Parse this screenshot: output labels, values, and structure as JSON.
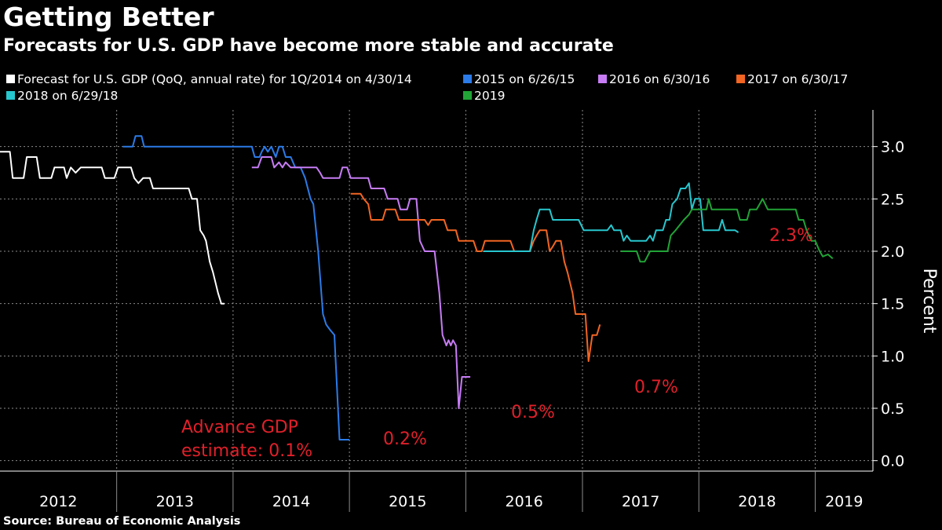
{
  "header": {
    "title": "Getting Better",
    "subtitle": "Forecasts for U.S. GDP have become more stable and accurate"
  },
  "footer": {
    "source": "Source: Bureau of Economic Analysis"
  },
  "chart_data": {
    "type": "line",
    "title": "Getting Better",
    "subtitle": "Forecasts for U.S. GDP have become more stable and accurate",
    "ylabel": "Percent",
    "ylim": [
      -0.1,
      3.35
    ],
    "yticks": [
      0.0,
      0.5,
      1.0,
      1.5,
      2.0,
      2.5,
      3.0
    ],
    "ytick_labels": [
      "0.0",
      "0.5",
      "1.0",
      "1.5",
      "2.0",
      "2.5",
      "3.0"
    ],
    "xlim": [
      "2012-01-01",
      "2019-07-01"
    ],
    "year_labels": [
      "2012",
      "2013",
      "2014",
      "2015",
      "2016",
      "2017",
      "2018",
      "2019"
    ],
    "grid": true,
    "y_axis_position": "right",
    "legend_position": "top",
    "series": [
      {
        "name": "Forecast for U.S. GDP (QoQ, annual rate) for 1Q/2014 on 4/30/14",
        "color": "#ffffff",
        "points": [
          [
            "2012-01-01",
            2.95
          ],
          [
            "2012-02-01",
            2.95
          ],
          [
            "2012-02-10",
            2.7
          ],
          [
            "2012-03-15",
            2.7
          ],
          [
            "2012-03-25",
            2.9
          ],
          [
            "2012-04-25",
            2.9
          ],
          [
            "2012-05-05",
            2.7
          ],
          [
            "2012-06-10",
            2.7
          ],
          [
            "2012-06-20",
            2.8
          ],
          [
            "2012-07-20",
            2.8
          ],
          [
            "2012-07-28",
            2.7
          ],
          [
            "2012-08-10",
            2.8
          ],
          [
            "2012-08-25",
            2.75
          ],
          [
            "2012-09-10",
            2.8
          ],
          [
            "2012-11-15",
            2.8
          ],
          [
            "2012-11-25",
            2.7
          ],
          [
            "2012-12-25",
            2.7
          ],
          [
            "2013-01-05",
            2.8
          ],
          [
            "2013-02-15",
            2.8
          ],
          [
            "2013-02-25",
            2.7
          ],
          [
            "2013-03-10",
            2.65
          ],
          [
            "2013-03-25",
            2.7
          ],
          [
            "2013-04-15",
            2.7
          ],
          [
            "2013-04-25",
            2.6
          ],
          [
            "2013-08-15",
            2.6
          ],
          [
            "2013-08-25",
            2.5
          ],
          [
            "2013-09-10",
            2.5
          ],
          [
            "2013-09-20",
            2.2
          ],
          [
            "2013-10-01",
            2.15
          ],
          [
            "2013-10-08",
            2.1
          ],
          [
            "2013-10-20",
            1.9
          ],
          [
            "2013-10-30",
            1.8
          ],
          [
            "2013-11-15",
            1.6
          ],
          [
            "2013-11-25",
            1.5
          ],
          [
            "2013-12-05",
            1.5
          ]
        ]
      },
      {
        "name": "2015 on 6/26/15",
        "color": "#2b7be8",
        "points": [
          [
            "2013-01-20",
            3.0
          ],
          [
            "2013-02-20",
            3.0
          ],
          [
            "2013-03-01",
            3.1
          ],
          [
            "2013-03-20",
            3.1
          ],
          [
            "2013-03-28",
            3.0
          ],
          [
            "2014-03-01",
            3.0
          ],
          [
            "2014-03-10",
            2.9
          ],
          [
            "2014-03-25",
            2.9
          ],
          [
            "2014-04-01",
            2.95
          ],
          [
            "2014-04-10",
            3.0
          ],
          [
            "2014-04-20",
            2.95
          ],
          [
            "2014-05-01",
            3.0
          ],
          [
            "2014-05-15",
            2.9
          ],
          [
            "2014-05-25",
            3.0
          ],
          [
            "2014-06-05",
            3.0
          ],
          [
            "2014-06-15",
            2.9
          ],
          [
            "2014-07-01",
            2.9
          ],
          [
            "2014-07-15",
            2.8
          ],
          [
            "2014-08-01",
            2.8
          ],
          [
            "2014-08-15",
            2.7
          ],
          [
            "2014-09-01",
            2.5
          ],
          [
            "2014-09-10",
            2.45
          ],
          [
            "2014-09-25",
            2.0
          ],
          [
            "2014-10-10",
            1.4
          ],
          [
            "2014-10-20",
            1.3
          ],
          [
            "2014-11-01",
            1.25
          ],
          [
            "2014-11-15",
            1.2
          ],
          [
            "2014-12-01",
            0.2
          ],
          [
            "2015-01-01",
            0.2
          ]
        ]
      },
      {
        "name": "2016 on 6/30/16",
        "color": "#c77cf5",
        "points": [
          [
            "2014-03-01",
            2.8
          ],
          [
            "2014-03-20",
            2.8
          ],
          [
            "2014-04-01",
            2.9
          ],
          [
            "2014-05-01",
            2.9
          ],
          [
            "2014-05-10",
            2.8
          ],
          [
            "2014-05-25",
            2.85
          ],
          [
            "2014-06-05",
            2.8
          ],
          [
            "2014-06-15",
            2.85
          ],
          [
            "2014-07-01",
            2.8
          ],
          [
            "2014-09-20",
            2.8
          ],
          [
            "2014-10-01",
            2.75
          ],
          [
            "2014-10-10",
            2.7
          ],
          [
            "2014-12-01",
            2.7
          ],
          [
            "2014-12-10",
            2.8
          ],
          [
            "2014-12-25",
            2.8
          ],
          [
            "2015-01-05",
            2.7
          ],
          [
            "2015-03-01",
            2.7
          ],
          [
            "2015-03-10",
            2.6
          ],
          [
            "2015-04-20",
            2.6
          ],
          [
            "2015-05-01",
            2.5
          ],
          [
            "2015-06-01",
            2.5
          ],
          [
            "2015-06-10",
            2.4
          ],
          [
            "2015-07-01",
            2.4
          ],
          [
            "2015-07-10",
            2.5
          ],
          [
            "2015-07-30",
            2.5
          ],
          [
            "2015-08-10",
            2.1
          ],
          [
            "2015-08-25",
            2.0
          ],
          [
            "2015-09-25",
            2.0
          ],
          [
            "2015-10-10",
            1.6
          ],
          [
            "2015-10-20",
            1.2
          ],
          [
            "2015-11-01",
            1.1
          ],
          [
            "2015-11-08",
            1.15
          ],
          [
            "2015-11-15",
            1.1
          ],
          [
            "2015-11-22",
            1.15
          ],
          [
            "2015-12-01",
            1.1
          ],
          [
            "2015-12-10",
            0.5
          ],
          [
            "2015-12-20",
            0.8
          ],
          [
            "2016-01-15",
            0.8
          ]
        ]
      },
      {
        "name": "2017 on 6/30/17",
        "color": "#f26522",
        "points": [
          [
            "2015-01-05",
            2.55
          ],
          [
            "2015-02-05",
            2.55
          ],
          [
            "2015-02-15",
            2.5
          ],
          [
            "2015-03-01",
            2.45
          ],
          [
            "2015-03-10",
            2.3
          ],
          [
            "2015-04-15",
            2.3
          ],
          [
            "2015-04-25",
            2.4
          ],
          [
            "2015-05-25",
            2.4
          ],
          [
            "2015-06-05",
            2.3
          ],
          [
            "2015-08-25",
            2.3
          ],
          [
            "2015-09-05",
            2.25
          ],
          [
            "2015-09-15",
            2.3
          ],
          [
            "2015-10-25",
            2.3
          ],
          [
            "2015-11-05",
            2.2
          ],
          [
            "2015-12-01",
            2.2
          ],
          [
            "2015-12-10",
            2.1
          ],
          [
            "2016-01-25",
            2.1
          ],
          [
            "2016-02-05",
            2.0
          ],
          [
            "2016-02-20",
            2.0
          ],
          [
            "2016-03-01",
            2.1
          ],
          [
            "2016-05-20",
            2.1
          ],
          [
            "2016-06-01",
            2.0
          ],
          [
            "2016-07-20",
            2.0
          ],
          [
            "2016-08-01",
            2.1
          ],
          [
            "2016-08-10",
            2.15
          ],
          [
            "2016-08-20",
            2.2
          ],
          [
            "2016-09-10",
            2.2
          ],
          [
            "2016-09-20",
            2.0
          ],
          [
            "2016-10-01",
            2.05
          ],
          [
            "2016-10-10",
            2.1
          ],
          [
            "2016-10-25",
            2.1
          ],
          [
            "2016-11-05",
            1.9
          ],
          [
            "2016-11-15",
            1.8
          ],
          [
            "2016-12-01",
            1.6
          ],
          [
            "2016-12-10",
            1.4
          ],
          [
            "2016-12-20",
            1.4
          ],
          [
            "2017-01-10",
            1.4
          ],
          [
            "2017-01-20",
            0.95
          ],
          [
            "2017-02-01",
            1.2
          ],
          [
            "2017-02-15",
            1.2
          ],
          [
            "2017-02-25",
            1.3
          ]
        ]
      },
      {
        "name": "2018 on 6/29/18",
        "color": "#27c7cf",
        "points": [
          [
            "2016-02-25",
            2.0
          ],
          [
            "2016-07-20",
            2.0
          ],
          [
            "2016-08-01",
            2.2
          ],
          [
            "2016-08-10",
            2.3
          ],
          [
            "2016-08-20",
            2.4
          ],
          [
            "2016-09-20",
            2.4
          ],
          [
            "2016-09-30",
            2.3
          ],
          [
            "2016-12-20",
            2.3
          ],
          [
            "2017-01-05",
            2.2
          ],
          [
            "2017-03-20",
            2.2
          ],
          [
            "2017-04-01",
            2.25
          ],
          [
            "2017-04-10",
            2.2
          ],
          [
            "2017-05-01",
            2.2
          ],
          [
            "2017-05-10",
            2.1
          ],
          [
            "2017-05-20",
            2.15
          ],
          [
            "2017-06-01",
            2.1
          ],
          [
            "2017-07-20",
            2.1
          ],
          [
            "2017-08-01",
            2.15
          ],
          [
            "2017-08-10",
            2.1
          ],
          [
            "2017-08-20",
            2.2
          ],
          [
            "2017-09-10",
            2.2
          ],
          [
            "2017-09-20",
            2.3
          ],
          [
            "2017-10-01",
            2.3
          ],
          [
            "2017-10-10",
            2.45
          ],
          [
            "2017-10-25",
            2.5
          ],
          [
            "2017-11-05",
            2.6
          ],
          [
            "2017-11-20",
            2.6
          ],
          [
            "2017-12-01",
            2.65
          ],
          [
            "2017-12-10",
            2.4
          ],
          [
            "2017-12-20",
            2.5
          ],
          [
            "2018-01-05",
            2.5
          ],
          [
            "2018-01-15",
            2.2
          ],
          [
            "2018-03-05",
            2.2
          ],
          [
            "2018-03-15",
            2.3
          ],
          [
            "2018-03-25",
            2.2
          ],
          [
            "2018-04-10",
            2.2
          ],
          [
            "2018-04-25",
            2.2
          ],
          [
            "2018-05-05",
            2.18
          ]
        ]
      },
      {
        "name": "2019",
        "color": "#21a336",
        "points": [
          [
            "2017-05-01",
            2.0
          ],
          [
            "2017-06-20",
            2.0
          ],
          [
            "2017-07-01",
            1.9
          ],
          [
            "2017-07-15",
            1.9
          ],
          [
            "2017-08-01",
            2.0
          ],
          [
            "2017-09-25",
            2.0
          ],
          [
            "2017-10-05",
            2.15
          ],
          [
            "2017-10-20",
            2.2
          ],
          [
            "2017-11-15",
            2.3
          ],
          [
            "2017-12-01",
            2.35
          ],
          [
            "2017-12-10",
            2.4
          ],
          [
            "2018-01-25",
            2.4
          ],
          [
            "2018-02-01",
            2.5
          ],
          [
            "2018-02-10",
            2.4
          ],
          [
            "2018-05-01",
            2.4
          ],
          [
            "2018-05-10",
            2.3
          ],
          [
            "2018-06-01",
            2.3
          ],
          [
            "2018-06-10",
            2.4
          ],
          [
            "2018-07-01",
            2.4
          ],
          [
            "2018-07-20",
            2.5
          ],
          [
            "2018-08-05",
            2.4
          ],
          [
            "2018-11-01",
            2.4
          ],
          [
            "2018-11-10",
            2.3
          ],
          [
            "2018-11-25",
            2.3
          ],
          [
            "2018-12-05",
            2.2
          ],
          [
            "2018-12-20",
            2.1
          ],
          [
            "2019-01-01",
            2.1
          ],
          [
            "2019-01-15",
            2.0
          ],
          [
            "2019-01-25",
            1.95
          ],
          [
            "2019-02-10",
            1.97
          ],
          [
            "2019-02-25",
            1.93
          ]
        ]
      }
    ],
    "annotations": [
      {
        "name": "advance-estimate-label",
        "lines": [
          "Advance GDP",
          "estimate: 0.1%"
        ],
        "color": "#e0202a"
      },
      {
        "name": "label-2015",
        "text": "0.2%",
        "color": "#e0202a"
      },
      {
        "name": "label-2016",
        "text": "0.5%",
        "color": "#e0202a"
      },
      {
        "name": "label-2017",
        "text": "0.7%",
        "color": "#e0202a"
      },
      {
        "name": "label-2018",
        "text": "2.3%",
        "color": "#e0202a"
      }
    ]
  }
}
